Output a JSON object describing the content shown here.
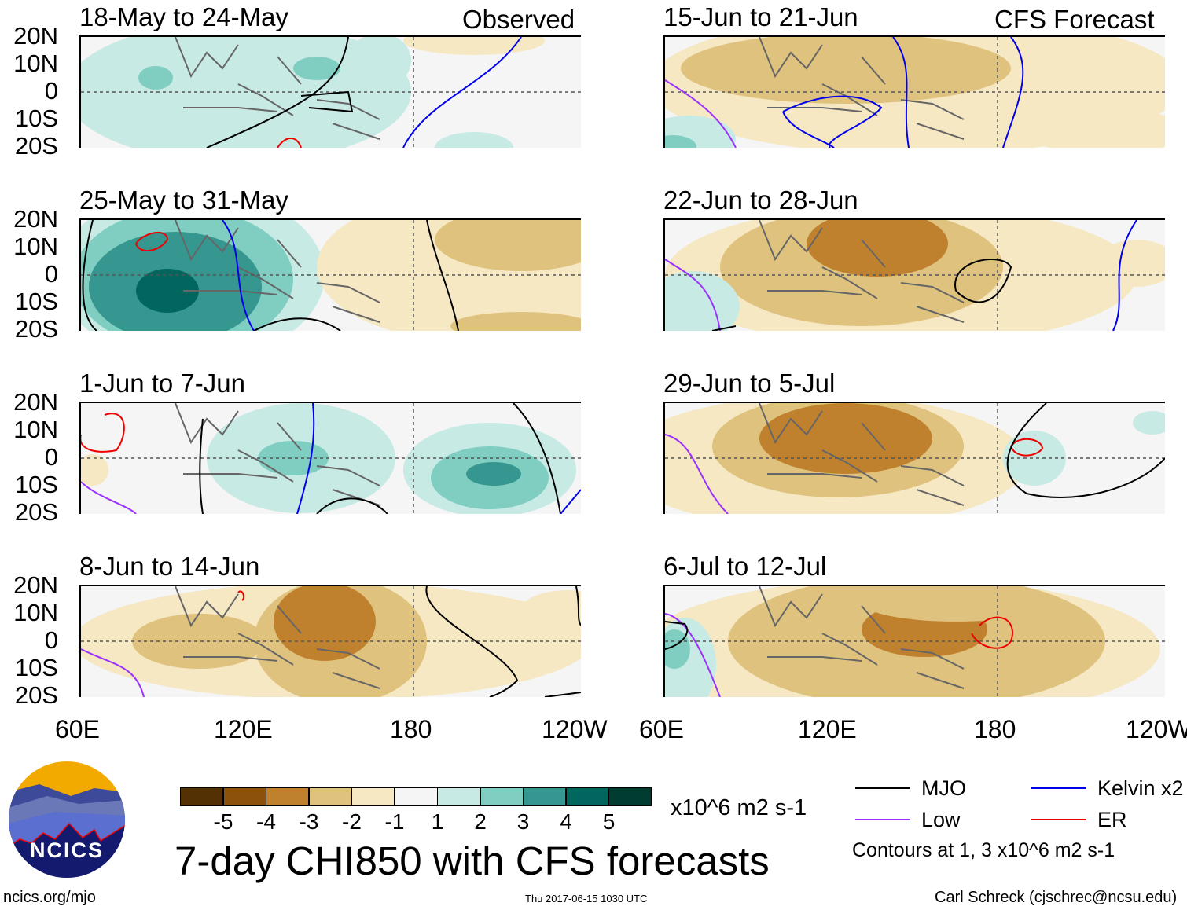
{
  "header": {
    "observed_label": "Observed",
    "forecast_label": "CFS Forecast"
  },
  "panels": [
    {
      "title": "18-May to 24-May",
      "type": "observed"
    },
    {
      "title": "25-May to 31-May",
      "type": "observed"
    },
    {
      "title": "1-Jun to 7-Jun",
      "type": "observed"
    },
    {
      "title": "8-Jun to 14-Jun",
      "type": "observed"
    },
    {
      "title": "15-Jun to 21-Jun",
      "type": "forecast"
    },
    {
      "title": "22-Jun to 28-Jun",
      "type": "forecast"
    },
    {
      "title": "29-Jun to 5-Jul",
      "type": "forecast"
    },
    {
      "title": "6-Jul to 12-Jul",
      "type": "forecast"
    }
  ],
  "axes": {
    "lat_ticks": [
      "20N",
      "10N",
      "0",
      "10S",
      "20S"
    ],
    "lon_ticks": [
      "60E",
      "120E",
      "180",
      "120W"
    ]
  },
  "chart_data": {
    "type": "heatmap",
    "title": "7-day CHI850 with CFS forecasts",
    "variable": "CHI850",
    "units": "x10^6 m2 s-1",
    "lat_range": [
      -20,
      20
    ],
    "lon_range": [
      60,
      240
    ],
    "colorbar": {
      "levels": [
        "-5",
        "-4",
        "-3",
        "-2",
        "-1",
        "1",
        "2",
        "3",
        "4",
        "5"
      ],
      "colors": [
        "#543005",
        "#8c510a",
        "#bf812d",
        "#dfc27d",
        "#f6e8c3",
        "#f5f5f5",
        "#c7eae5",
        "#80cdc1",
        "#35978f",
        "#01665e",
        "#003c30"
      ]
    },
    "legend": [
      {
        "label": "MJO",
        "color": "#000000"
      },
      {
        "label": "Kelvin x2",
        "color": "#0000ee"
      },
      {
        "label": "Low",
        "color": "#9b30ff"
      },
      {
        "label": "ER",
        "color": "#ee0000"
      }
    ],
    "contour_note": "Contours at 1, 3 x10^6 m2 s-1"
  },
  "footer": {
    "logo_text": "NCICS",
    "url": "ncics.org/mjo",
    "timestamp": "Thu 2017-06-15 1030 UTC",
    "author": "Carl Schreck (cjschrec@ncsu.edu)"
  }
}
